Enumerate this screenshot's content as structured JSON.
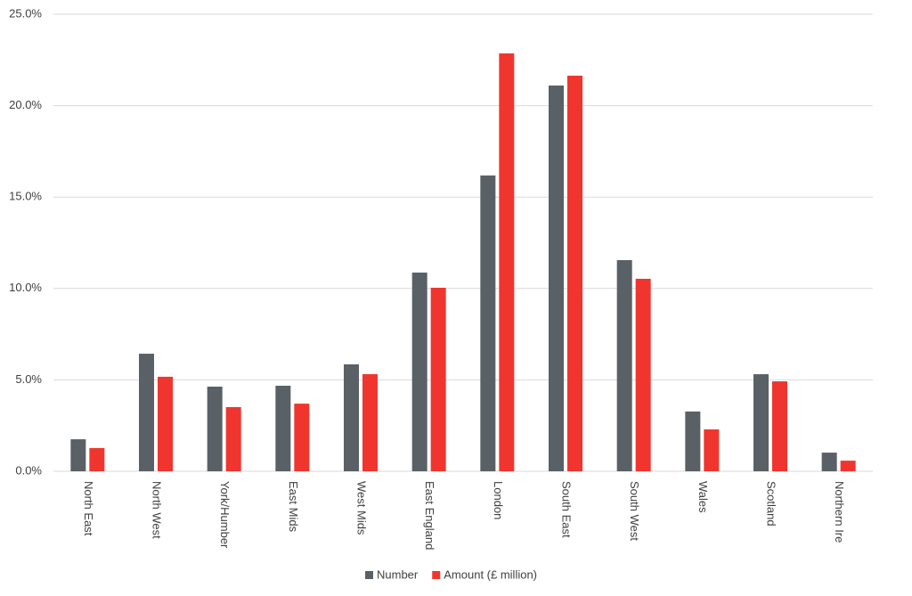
{
  "chart_data": {
    "type": "bar",
    "categories": [
      "North East",
      "North West",
      "York/Humber",
      "East Mids",
      "West Mids",
      "East England",
      "London",
      "South East",
      "South West",
      "Wales",
      "Scotland",
      "Northern Ire"
    ],
    "series": [
      {
        "name": "Number",
        "color": "#596066",
        "values": [
          1.75,
          6.43,
          4.63,
          4.68,
          5.85,
          10.87,
          16.18,
          21.1,
          11.55,
          3.27,
          5.31,
          1.02
        ]
      },
      {
        "name": "Amount (£ million)",
        "color": "#f0352f",
        "values": [
          1.27,
          5.17,
          3.51,
          3.7,
          5.31,
          10.04,
          22.86,
          21.64,
          10.53,
          2.29,
          4.92,
          0.58
        ]
      }
    ],
    "ylim": [
      0,
      25
    ],
    "yticks": [
      {
        "value": 0,
        "label": "0.0%"
      },
      {
        "value": 5,
        "label": "5.0%"
      },
      {
        "value": 10,
        "label": "10.0%"
      },
      {
        "value": 15,
        "label": "15.0%"
      },
      {
        "value": 20,
        "label": "20.0%"
      },
      {
        "value": 25,
        "label": "25.0%"
      }
    ],
    "grid": true,
    "legend": "bottom"
  }
}
